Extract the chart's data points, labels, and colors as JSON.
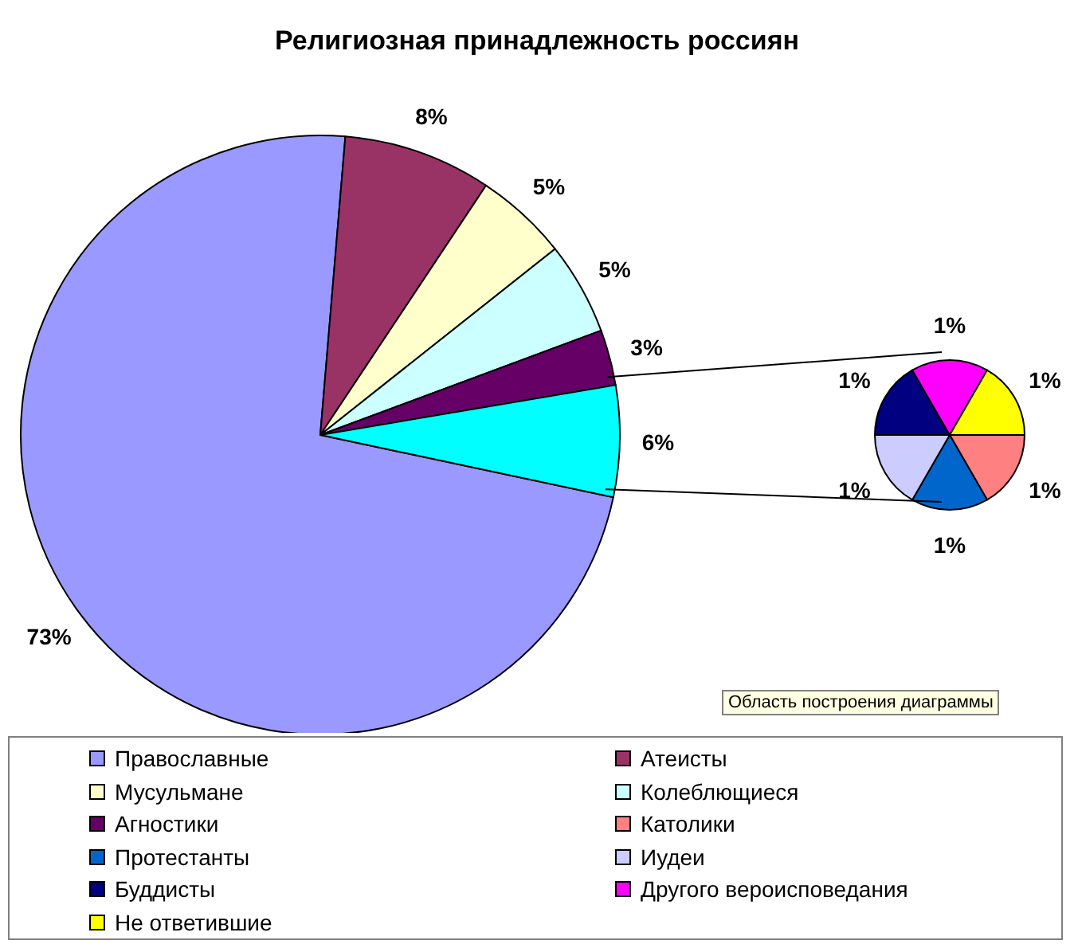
{
  "chart_data": [
    {
      "type": "pie",
      "title": "Религиозная принадлежность россиян",
      "categories": [
        "Православные",
        "Атеисты",
        "Мусульмане",
        "Колеблющиеся",
        "Агностики",
        null
      ],
      "values": [
        73,
        8,
        5,
        5,
        3,
        6
      ],
      "colors": [
        "#9999ff",
        "#993366",
        "#ffffcc",
        "#ccffff",
        "#660066",
        "#00ffff"
      ],
      "value_labels": [
        "73%",
        "8%",
        "5%",
        "5%",
        "3%",
        "6%"
      ],
      "legend": "bottom",
      "annotations": [
        "Область построения диаграммы"
      ]
    },
    {
      "type": "pie",
      "categories": [
        "Католики",
        "Протестанты",
        "Иудеи",
        "Буддисты",
        "Другого вероисповедания",
        "Не ответившие"
      ],
      "values": [
        1,
        1,
        1,
        1,
        1,
        1
      ],
      "colors": [
        "#ff8080",
        "#0066cc",
        "#ccccff",
        "#000080",
        "#ff00ff",
        "#ffff00"
      ],
      "value_labels": [
        "1%",
        "1%",
        "1%",
        "1%",
        "1%",
        "1%"
      ],
      "legend": "bottom"
    }
  ]
}
